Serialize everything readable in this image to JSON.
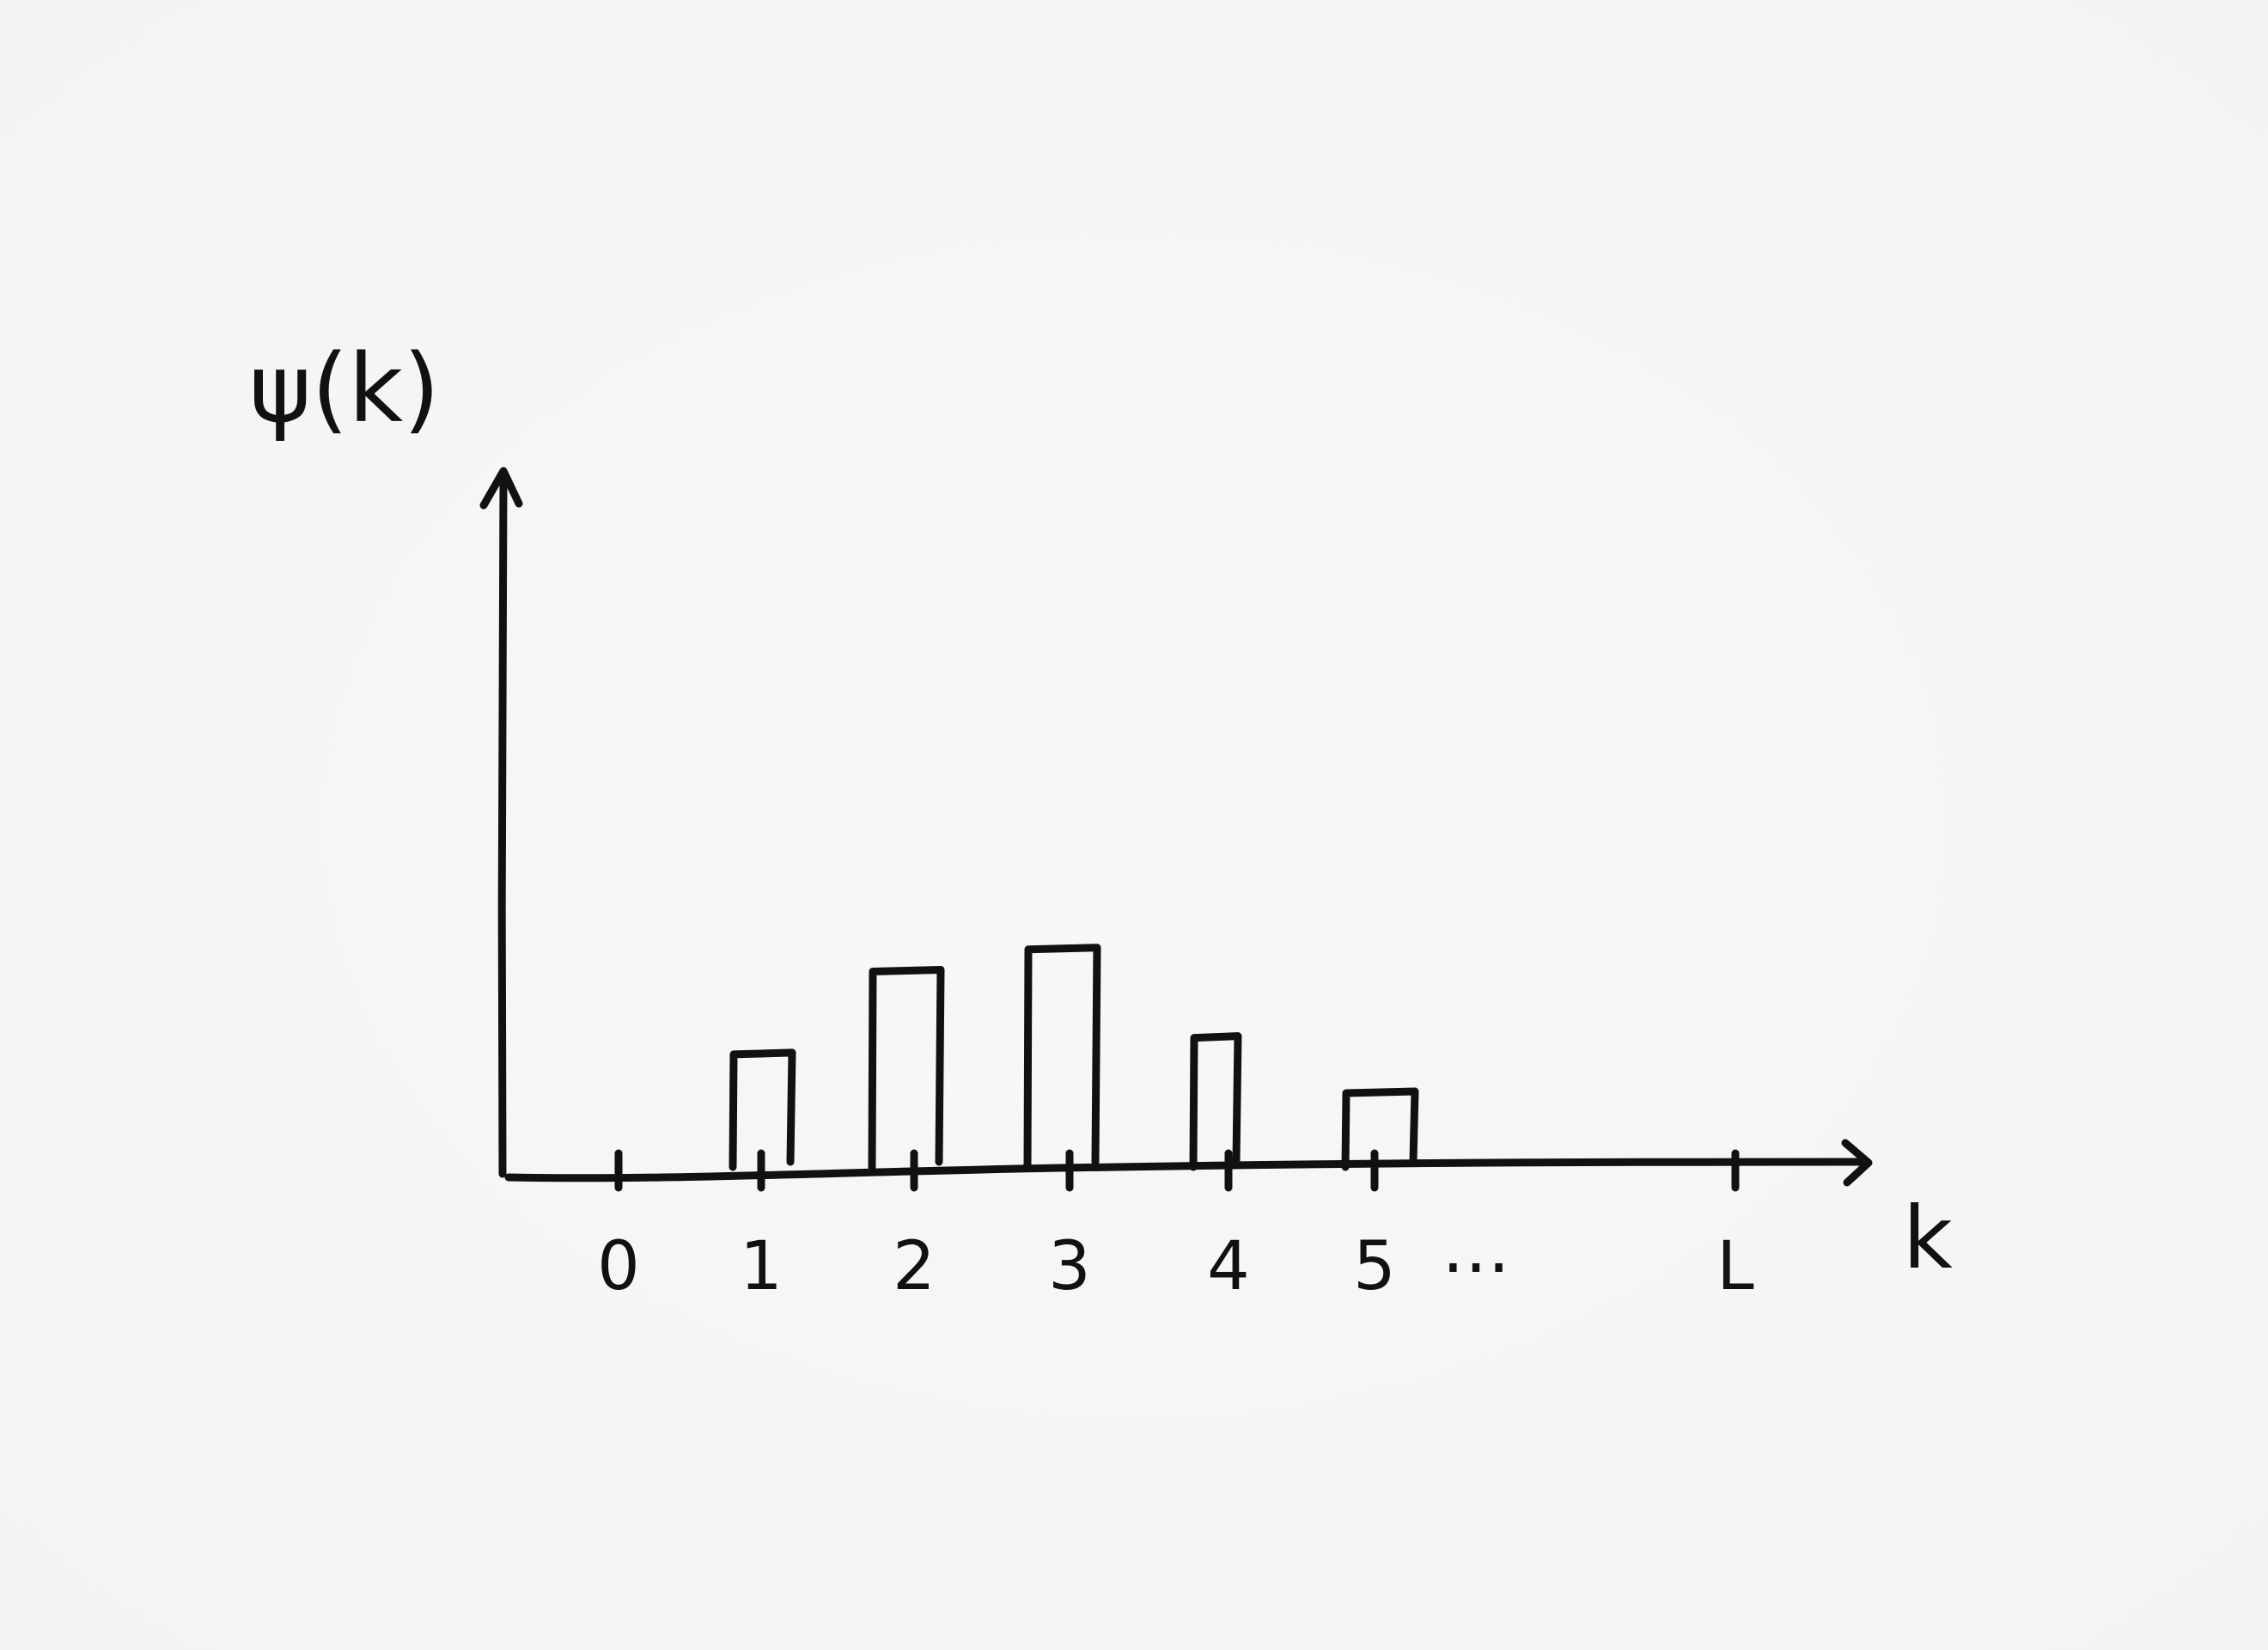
{
  "chart_data": {
    "type": "bar",
    "ylabel": "ψ(k)",
    "xlabel": "k",
    "x_tick_labels": [
      "0",
      "1",
      "2",
      "3",
      "4",
      "5",
      "…",
      "L"
    ],
    "categories": [
      "1",
      "2",
      "3",
      "4",
      "5"
    ],
    "values": [
      0.42,
      0.72,
      0.8,
      0.48,
      0.28
    ],
    "ylim": [
      0,
      2.5
    ],
    "grid": false,
    "legend": "none",
    "colors": {
      "ink": "#111111",
      "paper": "#f6f6f6"
    }
  }
}
